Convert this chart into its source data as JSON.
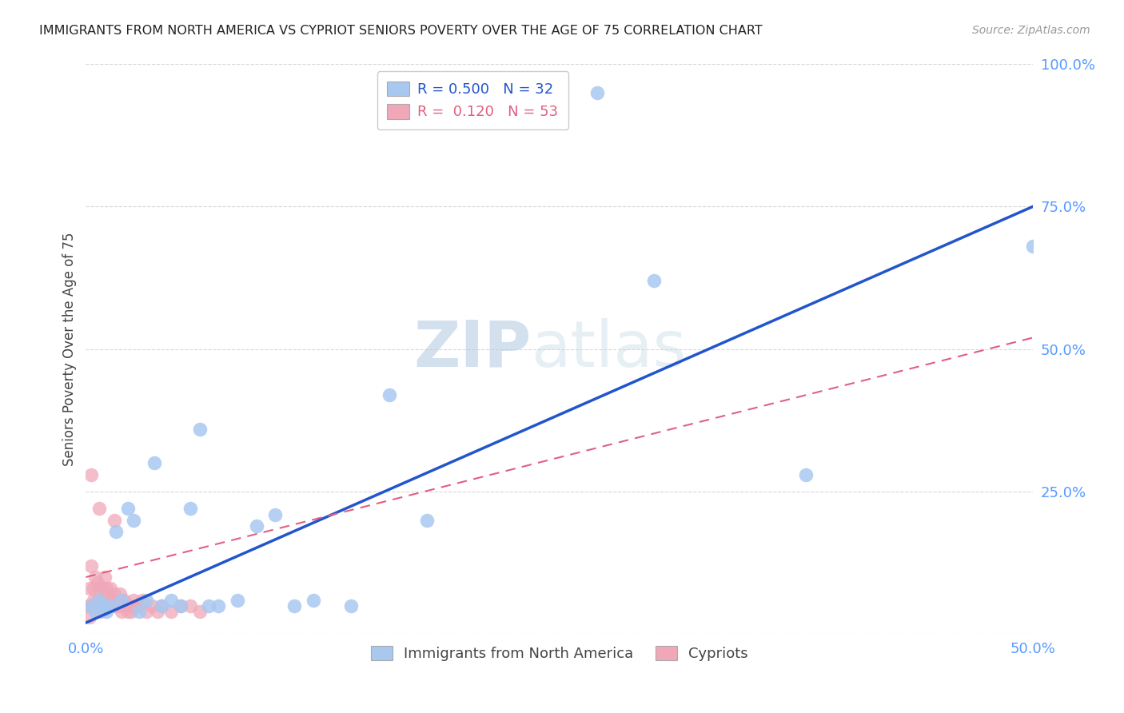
{
  "title": "IMMIGRANTS FROM NORTH AMERICA VS CYPRIOT SENIORS POVERTY OVER THE AGE OF 75 CORRELATION CHART",
  "source": "Source: ZipAtlas.com",
  "ylabel": "Seniors Poverty Over the Age of 75",
  "xlim": [
    0.0,
    0.5
  ],
  "ylim": [
    0.0,
    1.0
  ],
  "xticks": [
    0.0,
    0.1,
    0.2,
    0.3,
    0.4,
    0.5
  ],
  "yticks": [
    0.0,
    0.25,
    0.5,
    0.75,
    1.0
  ],
  "xtick_labels": [
    "0.0%",
    "",
    "",
    "",
    "",
    "50.0%"
  ],
  "ytick_labels": [
    "",
    "25.0%",
    "50.0%",
    "75.0%",
    "100.0%"
  ],
  "blue_R": 0.5,
  "blue_N": 32,
  "pink_R": 0.12,
  "pink_N": 53,
  "blue_color": "#a8c8f0",
  "pink_color": "#f0a8b8",
  "blue_line_color": "#2255cc",
  "pink_line_color": "#e06080",
  "blue_line": [
    0.0,
    0.02,
    0.5,
    0.75
  ],
  "pink_line": [
    0.0,
    0.1,
    0.5,
    0.52
  ],
  "watermark_zip": "ZIP",
  "watermark_atlas": "atlas",
  "background_color": "#ffffff",
  "grid_color": "#d8d8d8",
  "blue_scatter_x": [
    0.003,
    0.005,
    0.007,
    0.009,
    0.011,
    0.013,
    0.016,
    0.019,
    0.022,
    0.025,
    0.028,
    0.032,
    0.036,
    0.04,
    0.045,
    0.05,
    0.055,
    0.06,
    0.065,
    0.07,
    0.08,
    0.09,
    0.1,
    0.11,
    0.12,
    0.14,
    0.16,
    0.18,
    0.27,
    0.3,
    0.38,
    0.5
  ],
  "blue_scatter_y": [
    0.05,
    0.04,
    0.06,
    0.05,
    0.04,
    0.05,
    0.18,
    0.06,
    0.22,
    0.2,
    0.04,
    0.06,
    0.3,
    0.05,
    0.06,
    0.05,
    0.22,
    0.36,
    0.05,
    0.05,
    0.06,
    0.19,
    0.21,
    0.05,
    0.06,
    0.05,
    0.42,
    0.2,
    0.95,
    0.62,
    0.28,
    0.68
  ],
  "pink_scatter_x": [
    0.001,
    0.002,
    0.002,
    0.003,
    0.003,
    0.004,
    0.004,
    0.005,
    0.005,
    0.006,
    0.006,
    0.007,
    0.007,
    0.008,
    0.008,
    0.009,
    0.009,
    0.01,
    0.01,
    0.011,
    0.011,
    0.012,
    0.012,
    0.013,
    0.013,
    0.014,
    0.015,
    0.015,
    0.016,
    0.017,
    0.018,
    0.018,
    0.019,
    0.02,
    0.021,
    0.022,
    0.023,
    0.024,
    0.025,
    0.026,
    0.028,
    0.03,
    0.032,
    0.035,
    0.038,
    0.04,
    0.045,
    0.05,
    0.055,
    0.06,
    0.003,
    0.007,
    0.015
  ],
  "pink_scatter_y": [
    0.05,
    0.03,
    0.08,
    0.05,
    0.12,
    0.06,
    0.08,
    0.05,
    0.1,
    0.06,
    0.09,
    0.05,
    0.08,
    0.06,
    0.04,
    0.05,
    0.08,
    0.06,
    0.1,
    0.05,
    0.08,
    0.07,
    0.05,
    0.06,
    0.08,
    0.05,
    0.07,
    0.06,
    0.05,
    0.06,
    0.07,
    0.05,
    0.04,
    0.06,
    0.05,
    0.04,
    0.05,
    0.04,
    0.06,
    0.05,
    0.05,
    0.06,
    0.04,
    0.05,
    0.04,
    0.05,
    0.04,
    0.05,
    0.05,
    0.04,
    0.28,
    0.22,
    0.2
  ]
}
